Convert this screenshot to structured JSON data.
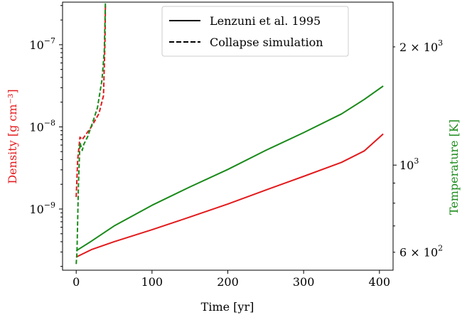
{
  "chart_data": {
    "type": "line",
    "xlabel": "Time [yr]",
    "ylabel_left": "Density [g cm⁻³]",
    "ylabel_right": "Temperature [K]",
    "xlim": [
      -18,
      418
    ],
    "ylim_left": [
      1.8e-10,
      3.3e-07
    ],
    "ylim_right": [
      540,
      2600
    ],
    "left_scale": "log",
    "right_scale": "log",
    "left_axis_color": "#e31a1c",
    "right_axis_color": "#1a8a1a",
    "x_ticks": [
      0,
      100,
      200,
      300,
      400
    ],
    "x_tick_labels": [
      "0",
      "100",
      "200",
      "300",
      "400"
    ],
    "left_ticks": [
      1e-09,
      1e-08,
      1e-07
    ],
    "left_tick_labels": [
      {
        "base": "10",
        "exp": "−9"
      },
      {
        "base": "10",
        "exp": "−8"
      },
      {
        "base": "10",
        "exp": "−7"
      }
    ],
    "right_ticks": [
      600,
      1000,
      2000
    ],
    "right_tick_labels": [
      {
        "coef": "6 × ",
        "base": "10",
        "exp": "2"
      },
      {
        "coef": "",
        "base": "10",
        "exp": "3"
      },
      {
        "coef": "2 × ",
        "base": "10",
        "exp": "3"
      }
    ],
    "legend": {
      "placement": "upper-center",
      "entries": [
        {
          "label": "Lenzuni et al. 1995",
          "style": "solid"
        },
        {
          "label": "Collapse simulation",
          "style": "dashed"
        }
      ]
    },
    "series": [
      {
        "quantity": "density",
        "axis": "left",
        "style": "solid",
        "color": "#e31a1c",
        "x": [
          0,
          20,
          50,
          100,
          150,
          200,
          250,
          300,
          350,
          380,
          405
        ],
        "y": [
          2.6e-10,
          3.2e-10,
          4e-10,
          5.6e-10,
          8e-10,
          1.15e-09,
          1.7e-09,
          2.5e-09,
          3.7e-09,
          5.1e-09,
          8.2e-09
        ]
      },
      {
        "quantity": "temperature",
        "axis": "right",
        "style": "solid",
        "color": "#1a8a1a",
        "x": [
          0,
          20,
          50,
          100,
          150,
          200,
          250,
          300,
          350,
          380,
          405
        ],
        "y": [
          605,
          640,
          700,
          790,
          880,
          975,
          1090,
          1210,
          1350,
          1470,
          1590
        ]
      },
      {
        "quantity": "density",
        "axis": "left",
        "style": "dashed",
        "color": "#e31a1c",
        "x": [
          0,
          2,
          5,
          8,
          12,
          20,
          30,
          36,
          38,
          38.5
        ],
        "y": [
          1.4e-09,
          4e-09,
          7.5e-09,
          7e-09,
          7.9e-09,
          1e-08,
          1.45e-08,
          2.4e-08,
          1.1e-07,
          3.1e-07
        ]
      },
      {
        "quantity": "temperature",
        "axis": "right",
        "style": "dashed",
        "color": "#1a8a1a",
        "x": [
          0,
          1,
          3,
          5,
          8,
          10,
          15,
          22,
          28,
          34,
          37,
          38.5
        ],
        "y": [
          560,
          600,
          900,
          1140,
          1090,
          1130,
          1180,
          1290,
          1400,
          1650,
          1950,
          2600
        ]
      }
    ]
  }
}
